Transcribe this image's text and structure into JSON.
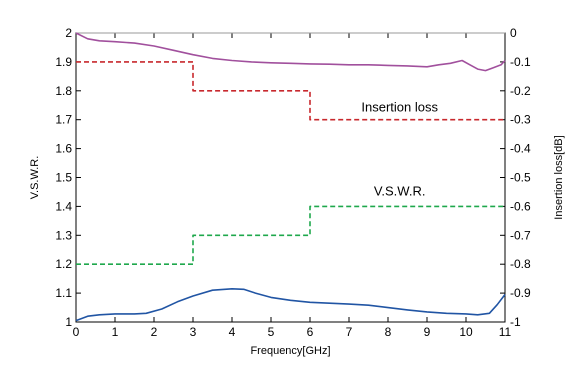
{
  "chart_data": {
    "type": "line",
    "xlabel": "Frequency[GHz]",
    "ylabel_left": "V.S.W.R.",
    "ylabel_right": "Insertion loss[dB]",
    "xlim": [
      0,
      11
    ],
    "ylim_left": [
      1,
      2
    ],
    "ylim_right": [
      -1,
      0
    ],
    "x_ticks": [
      "0",
      "1",
      "2",
      "3",
      "4",
      "5",
      "6",
      "7",
      "8",
      "9",
      "10",
      "11"
    ],
    "y_ticks_left": [
      "1",
      "1.1",
      "1.2",
      "1.3",
      "1.4",
      "1.5",
      "1.6",
      "1.7",
      "1.8",
      "1.9",
      "2"
    ],
    "y_ticks_right": [
      "-1",
      "-0.9",
      "-0.8",
      "-0.7",
      "-0.6",
      "-0.5",
      "-0.4",
      "-0.3",
      "-0.2",
      "-0.1",
      "0"
    ],
    "grid": false,
    "annotations": [
      {
        "text": "Insertion loss",
        "x": 8.3,
        "y_right": -0.255
      },
      {
        "text": "V.S.W.R.",
        "x": 8.3,
        "y_left": 1.455
      }
    ],
    "series": [
      {
        "axis": "right",
        "color": "#a1509d",
        "style": "solid",
        "x": [
          0,
          0.3,
          0.6,
          1,
          1.5,
          2,
          2.5,
          3,
          3.5,
          4,
          4.5,
          5,
          5.5,
          6,
          6.5,
          7,
          7.5,
          8,
          8.5,
          9,
          9.3,
          9.6,
          9.9,
          10.1,
          10.3,
          10.5,
          10.7,
          10.9,
          11
        ],
        "y": [
          0,
          -0.02,
          -0.027,
          -0.03,
          -0.035,
          -0.045,
          -0.06,
          -0.075,
          -0.088,
          -0.095,
          -0.1,
          -0.103,
          -0.105,
          -0.107,
          -0.108,
          -0.11,
          -0.11,
          -0.112,
          -0.114,
          -0.117,
          -0.11,
          -0.105,
          -0.095,
          -0.11,
          -0.125,
          -0.13,
          -0.12,
          -0.11,
          -0.095
        ]
      },
      {
        "axis": "right",
        "color": "#c8282d",
        "style": "dashed",
        "x": [
          0,
          3,
          3,
          6,
          6,
          11
        ],
        "y": [
          -0.1,
          -0.1,
          -0.2,
          -0.2,
          -0.3,
          -0.3
        ]
      },
      {
        "axis": "left",
        "color": "#1fa84c",
        "style": "dashed",
        "x": [
          0,
          3,
          3,
          6,
          6,
          11
        ],
        "y": [
          1.2,
          1.2,
          1.3,
          1.3,
          1.4,
          1.4
        ]
      },
      {
        "axis": "left",
        "color": "#2155a4",
        "style": "solid",
        "x": [
          0,
          0.3,
          0.6,
          1,
          1.5,
          1.8,
          2.2,
          2.6,
          3,
          3.5,
          4,
          4.3,
          4.6,
          5,
          5.5,
          6,
          6.5,
          7,
          7.5,
          8,
          8.5,
          9,
          9.5,
          10,
          10.3,
          10.6,
          10.8,
          11
        ],
        "y": [
          1.005,
          1.02,
          1.025,
          1.028,
          1.028,
          1.03,
          1.045,
          1.07,
          1.09,
          1.11,
          1.115,
          1.113,
          1.1,
          1.085,
          1.075,
          1.068,
          1.065,
          1.062,
          1.058,
          1.05,
          1.042,
          1.035,
          1.03,
          1.028,
          1.025,
          1.03,
          1.06,
          1.095
        ]
      }
    ]
  }
}
